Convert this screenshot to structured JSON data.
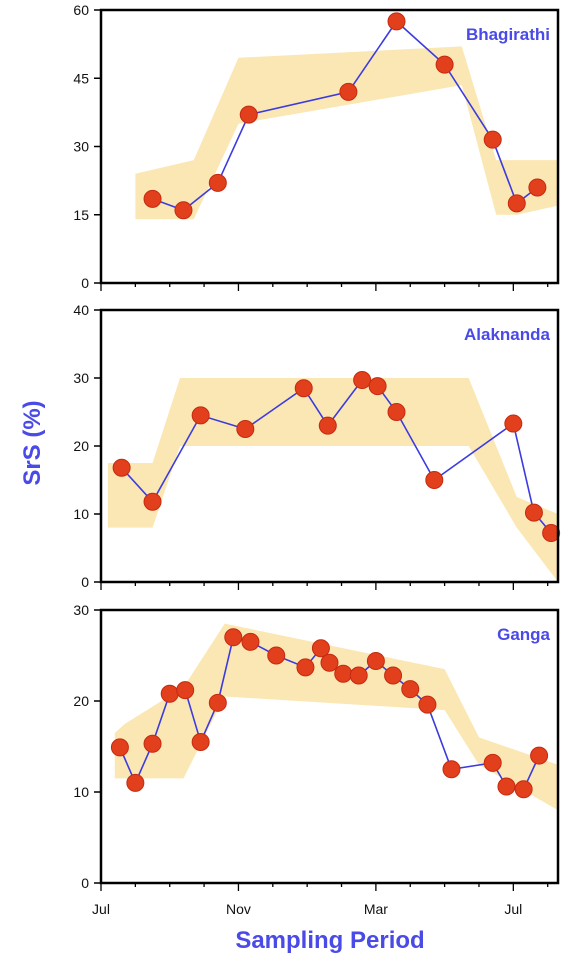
{
  "colors": {
    "band": "#fbe7b3",
    "line": "#3b3be0",
    "marker": "#e2401c",
    "marker_edge": "#c42a10",
    "title": "#4a4ae8",
    "frame": "#000000"
  },
  "axis_titles": {
    "x": "Sampling Period",
    "y": "SrS (%)"
  },
  "x_axis": {
    "tick_labels": [
      "Jul",
      "Nov",
      "Mar",
      "Jul"
    ],
    "tick_months": [
      0,
      4,
      8,
      12
    ],
    "range_months": [
      0,
      13.3
    ]
  },
  "chart_data": [
    {
      "type": "line",
      "title": "Bhagirathi",
      "xlabel": "",
      "ylabel": "",
      "ylim": [
        0,
        60
      ],
      "yticks": [
        0,
        15,
        30,
        45,
        60
      ],
      "series": [
        {
          "x": [
            1.5,
            2.4,
            3.4,
            4.3,
            7.2,
            8.6,
            10.0,
            11.4,
            12.1,
            12.7
          ],
          "y": [
            18.5,
            16,
            22,
            37,
            42,
            57.5,
            48,
            31.5,
            17.5,
            21
          ]
        }
      ],
      "band": {
        "x": [
          1.0,
          2.7,
          4.0,
          10.5,
          11.5,
          12.1,
          13.3
        ],
        "upper": [
          24,
          27,
          49.5,
          52,
          27,
          27,
          27
        ],
        "lower": [
          14,
          14,
          35,
          43.5,
          15,
          15,
          17
        ]
      }
    },
    {
      "type": "line",
      "title": "Alaknanda",
      "xlabel": "",
      "ylabel": "",
      "ylim": [
        0,
        40
      ],
      "yticks": [
        0,
        10,
        20,
        30,
        40
      ],
      "series": [
        {
          "x": [
            0.6,
            1.5,
            2.9,
            4.2,
            5.9,
            6.6,
            7.6,
            8.05,
            8.6,
            9.7,
            12.0,
            12.6,
            13.1
          ],
          "y": [
            16.8,
            11.8,
            24.5,
            22.5,
            28.5,
            23,
            29.7,
            28.8,
            25,
            15,
            23.3,
            10.2,
            7.2
          ]
        }
      ],
      "band": {
        "x": [
          0.2,
          1.5,
          2.3,
          10.7,
          12.1,
          13.3
        ],
        "upper": [
          17.5,
          17.5,
          30,
          30,
          12.5,
          10
        ],
        "lower": [
          8,
          8,
          20,
          20,
          8,
          0
        ]
      }
    },
    {
      "type": "line",
      "title": "Ganga",
      "xlabel": "",
      "ylabel": "",
      "ylim": [
        0,
        30
      ],
      "yticks": [
        0,
        10,
        20,
        30
      ],
      "series": [
        {
          "x": [
            0.55,
            1.0,
            1.5,
            2.0,
            2.45,
            2.9,
            3.4,
            3.85,
            4.35,
            5.1,
            5.95,
            6.4,
            6.65,
            7.05,
            7.5,
            8.0,
            8.5,
            9.0,
            9.5,
            10.2,
            11.4,
            11.8,
            12.3,
            12.75
          ],
          "y": [
            14.9,
            11,
            15.3,
            20.8,
            21.2,
            15.5,
            19.8,
            27,
            26.5,
            25,
            23.7,
            25.8,
            24.2,
            23,
            22.8,
            24.4,
            22.8,
            21.3,
            19.6,
            12.5,
            13.2,
            10.6,
            10.3,
            14
          ]
        }
      ],
      "band": {
        "x": [
          0.4,
          0.7,
          2.4,
          3.6,
          10.0,
          11.0,
          13.3
        ],
        "upper": [
          16.5,
          17.5,
          21.5,
          28.5,
          23.5,
          16,
          13
        ],
        "lower": [
          11.5,
          11.5,
          11.5,
          20.5,
          19,
          13,
          8
        ]
      }
    }
  ]
}
